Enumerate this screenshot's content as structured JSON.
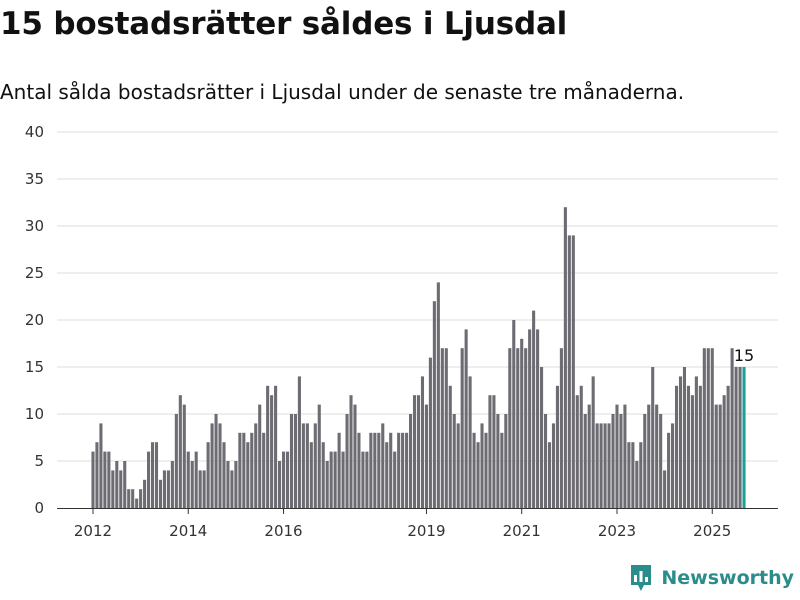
{
  "title": "15 bostadsrätter såldes i Ljusdal",
  "subtitle": "Antal sålda bostadsrätter i Ljusdal under de senaste tre månaderna.",
  "brand": {
    "name": "Newsworthy",
    "color": "#2a8d8b",
    "icon": "newsworthy-logo-icon"
  },
  "chart_data": {
    "type": "bar",
    "title": "",
    "xlabel": "",
    "ylabel": "",
    "ylim": [
      0,
      40
    ],
    "yticks": [
      0,
      5,
      10,
      15,
      20,
      25,
      30,
      35,
      40
    ],
    "grid": true,
    "x_start": "2012-01",
    "xticks": [
      {
        "label": "2012",
        "x": "2012-01"
      },
      {
        "label": "2014",
        "x": "2014-01"
      },
      {
        "label": "2016",
        "x": "2016-01"
      },
      {
        "label": "2019",
        "x": "2019-01"
      },
      {
        "label": "2021",
        "x": "2021-01"
      },
      {
        "label": "2023",
        "x": "2023-01"
      },
      {
        "label": "2025",
        "x": "2025-01"
      }
    ],
    "bar_color": "#6d6c72",
    "highlight_color": "#1f9e93",
    "highlight_label": "15",
    "values": [
      6,
      7,
      9,
      6,
      6,
      4,
      5,
      4,
      5,
      2,
      2,
      1,
      2,
      3,
      6,
      7,
      7,
      3,
      4,
      4,
      5,
      10,
      12,
      11,
      6,
      5,
      6,
      4,
      4,
      7,
      9,
      10,
      9,
      7,
      5,
      4,
      5,
      8,
      8,
      7,
      8,
      9,
      11,
      8,
      13,
      12,
      13,
      5,
      6,
      6,
      10,
      10,
      14,
      9,
      9,
      7,
      9,
      11,
      7,
      5,
      6,
      6,
      8,
      6,
      10,
      12,
      11,
      8,
      6,
      6,
      8,
      8,
      8,
      9,
      7,
      8,
      6,
      8,
      8,
      8,
      10,
      12,
      12,
      14,
      11,
      16,
      22,
      24,
      17,
      17,
      13,
      10,
      9,
      17,
      19,
      14,
      8,
      7,
      9,
      8,
      12,
      12,
      10,
      8,
      10,
      17,
      20,
      17,
      18,
      17,
      19,
      21,
      19,
      15,
      10,
      7,
      9,
      13,
      17,
      32,
      29,
      29,
      12,
      13,
      10,
      11,
      14,
      9,
      9,
      9,
      9,
      10,
      11,
      10,
      11,
      7,
      7,
      5,
      7,
      10,
      11,
      15,
      11,
      10,
      4,
      8,
      9,
      13,
      14,
      15,
      13,
      12,
      14,
      13,
      17,
      17,
      17,
      11,
      11,
      12,
      13,
      17,
      15,
      15,
      15
    ]
  }
}
